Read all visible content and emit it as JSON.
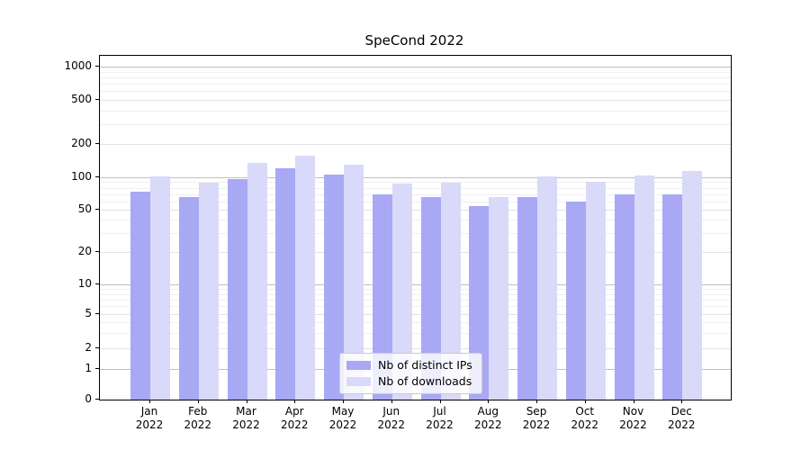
{
  "chart_data": {
    "type": "bar",
    "title": "SpeCond 2022",
    "yscale": "symlog",
    "ylim": [
      0,
      1000
    ],
    "y_ticks": [
      0,
      1,
      2,
      5,
      10,
      20,
      50,
      100,
      200,
      500,
      1000
    ],
    "grid": true,
    "legend_position": "lower center",
    "categories": [
      "Jan 2022",
      "Feb 2022",
      "Mar 2022",
      "Apr 2022",
      "May 2022",
      "Jun 2022",
      "Jul 2022",
      "Aug 2022",
      "Sep 2022",
      "Oct 2022",
      "Nov 2022",
      "Dec 2022"
    ],
    "series": [
      {
        "name": "Nb of distinct IPs",
        "slug": "distinct-ips",
        "color": "#a8a8f5",
        "values": [
          73,
          65,
          97,
          120,
          105,
          70,
          66,
          54,
          65,
          59,
          70,
          70
        ]
      },
      {
        "name": "Nb of downloads",
        "slug": "downloads",
        "color": "#d9d9fa",
        "values": [
          101,
          89,
          135,
          158,
          129,
          87,
          89,
          66,
          102,
          90,
          103,
          113
        ]
      }
    ]
  }
}
